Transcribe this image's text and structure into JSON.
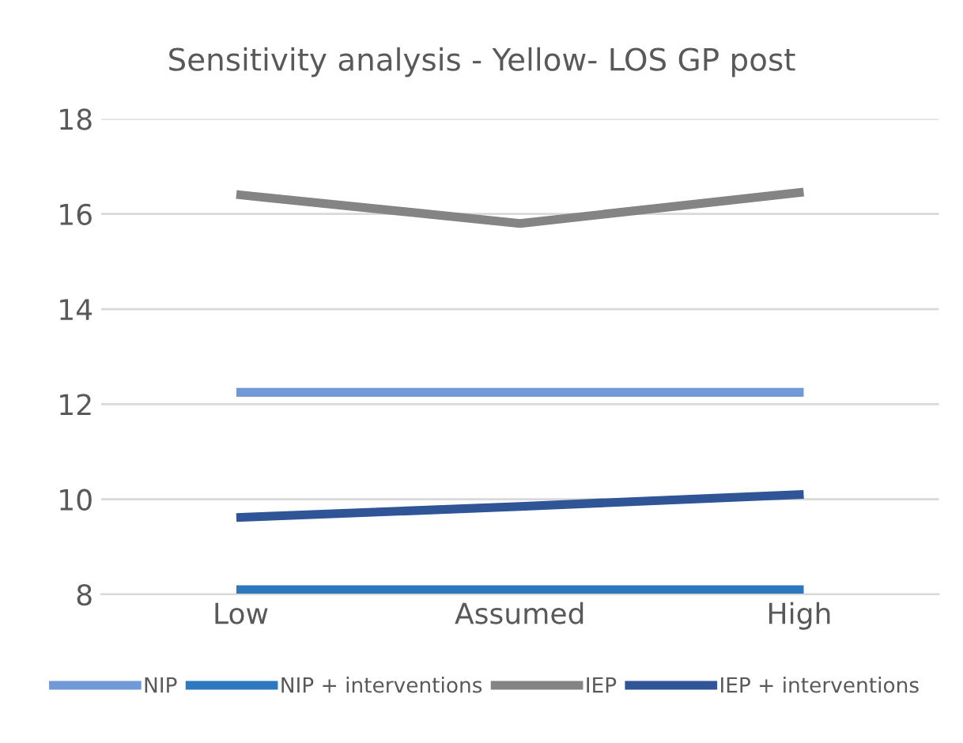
{
  "chart_data": {
    "type": "line",
    "title": "Sensitivity analysis - Yellow- LOS GP post",
    "categories": [
      "Low",
      "Assumed",
      "High"
    ],
    "series": [
      {
        "name": "NIP",
        "color": "#7199d8",
        "values": [
          12.25,
          12.25,
          12.25
        ]
      },
      {
        "name": "NIP + interventions",
        "color": "#2e78c0",
        "values": [
          8.1,
          8.1,
          8.1
        ]
      },
      {
        "name": "IEP",
        "color": "#848484",
        "values": [
          16.4,
          15.8,
          16.45
        ]
      },
      {
        "name": "IEP + interventions",
        "color": "#2f5597",
        "values": [
          9.62,
          9.85,
          10.1
        ]
      }
    ],
    "ylim": [
      8,
      18
    ],
    "yticks": [
      8,
      10,
      12,
      14,
      16,
      18
    ],
    "grid": "y",
    "legend": "bottom",
    "marker": "none",
    "line_style": "solid"
  }
}
